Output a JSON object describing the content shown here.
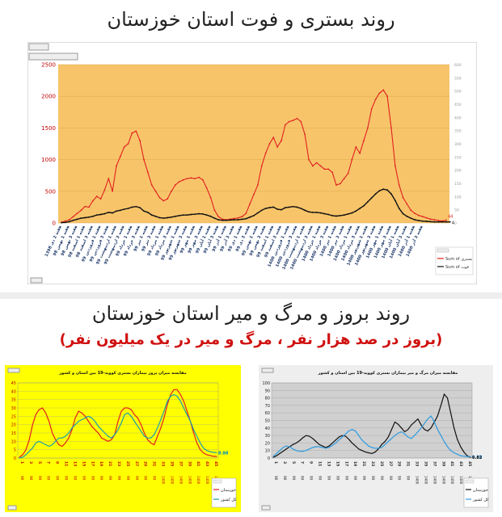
{
  "page": {
    "title1": "روند بستری و فوت استان خوزستان",
    "title2": "روند بروز و مرگ و میر استان خوزستان",
    "subtitle2": "(بروز در صد هزار نفر ، مرگ و میر در یک میلیون نفر)"
  },
  "colors": {
    "orange_bg": "#f7c46a",
    "yellow_bg": "#ffff00",
    "gray_bg": "#d0d0d0",
    "red": "#e02020",
    "black": "#111111",
    "teal": "#1e9ea8",
    "blue": "#2e9be0"
  },
  "chart_data": [
    {
      "type": "line",
      "title": "",
      "ylim_left": [
        0,
        2500
      ],
      "yticks_left": [
        0,
        500,
        1000,
        1500,
        2000,
        2500
      ],
      "ylim_right": [
        0,
        600
      ],
      "yticks_right": [
        0,
        50,
        100,
        150,
        200,
        250,
        300,
        350,
        400,
        450,
        500,
        550,
        600
      ],
      "x_tick_labels": [
        "هفته 2 دی 1398",
        "هفته 1 بهمن 98",
        "هفته 3 بهمن 98",
        "هفته 1 اسفند 98",
        "هفته 3 اسفند 98",
        "هفته 1 فروردین 99",
        "هفته 3 فروردین 99",
        "هفته 1 اردیبهشت 99",
        "هفته 3 اردیبهشت 99",
        "هفته 1 خرداد 99",
        "هفته 3 خرداد 99",
        "هفته 1 تیر 99",
        "هفته 3 تیر 99",
        "هفته 1 مرداد 99",
        "هفته 3 مرداد 99",
        "هفته 1 شهریور 99",
        "هفته 3 شهریور 99",
        "هفته 1 مهر 99",
        "هفته 3 مهر 99",
        "هفته 1 آبان 99",
        "هفته 3 آبان 99",
        "هفته 1 آذر 99",
        "هفته 3 آذر 99",
        "هفته 1 دی 99",
        "هفته 3 دی 99",
        "هفته 1 بهمن 99",
        "هفته 3 بهمن 99",
        "هفته 1 اسفند 99",
        "هفته 3 اسفند 99",
        "هفته 1 فروردین 1400",
        "هفته 3 فروردین 1400",
        "هفته 1 اردیبهشت 1400",
        "هفته 3 اردیبهشت 1400",
        "هفته 1 خرداد 1400",
        "هفته 3 خرداد 1400",
        "هفته 1 تیر 1400",
        "هفته 3 تیر 1400",
        "هفته 1 مرداد 1400",
        "هفته 3 مرداد 1400",
        "هفته 1 شهریور 1400",
        "هفته 3 شهریور 1400",
        "هفته 1 مهر 1400",
        "هفته 3 مهر 1400",
        "هفته 1 آبان 1400",
        "هفته 3 آبان 1400",
        "هفته 1 آذر 1400",
        "هفته 3 آذر 1400"
      ],
      "legend": {
        "placement": "bottom-right",
        "entries": [
          "Sum of بستری",
          "Sum of فوت"
        ]
      },
      "end_labels": [
        "44",
        "4"
      ],
      "series": [
        {
          "name": "Sum of بستری",
          "axis": "left",
          "color": "#e02020",
          "values": [
            10,
            30,
            50,
            100,
            150,
            200,
            260,
            250,
            350,
            420,
            380,
            520,
            700,
            500,
            900,
            1050,
            1200,
            1250,
            1420,
            1450,
            1300,
            1000,
            800,
            600,
            500,
            400,
            350,
            380,
            500,
            600,
            650,
            680,
            700,
            710,
            700,
            720,
            680,
            550,
            400,
            200,
            100,
            60,
            50,
            60,
            70,
            80,
            100,
            150,
            300,
            450,
            600,
            900,
            1100,
            1250,
            1350,
            1200,
            1300,
            1550,
            1600,
            1620,
            1650,
            1600,
            1400,
            1000,
            900,
            950,
            900,
            850,
            850,
            800,
            600,
            620,
            700,
            780,
            1000,
            1200,
            1100,
            1300,
            1500,
            1800,
            1950,
            2050,
            2100,
            2000,
            1500,
            900,
            600,
            400,
            300,
            200,
            150,
            120,
            100,
            80,
            60,
            50,
            40,
            30,
            44
          ]
        },
        {
          "name": "Sum of فوت",
          "axis": "right",
          "color": "#111111",
          "values": [
            1,
            2,
            5,
            10,
            14,
            18,
            20,
            22,
            25,
            30,
            32,
            35,
            40,
            38,
            45,
            48,
            52,
            55,
            60,
            62,
            58,
            45,
            40,
            30,
            25,
            20,
            18,
            20,
            22,
            25,
            28,
            30,
            30,
            32,
            33,
            35,
            34,
            30,
            25,
            18,
            12,
            10,
            10,
            11,
            12,
            12,
            14,
            16,
            22,
            28,
            38,
            48,
            55,
            58,
            60,
            52,
            50,
            58,
            60,
            62,
            60,
            55,
            48,
            42,
            40,
            40,
            38,
            35,
            32,
            28,
            26,
            28,
            30,
            34,
            38,
            45,
            55,
            65,
            80,
            95,
            110,
            122,
            128,
            125,
            110,
            85,
            55,
            35,
            25,
            18,
            12,
            9,
            7,
            6,
            5,
            4,
            4,
            4,
            4,
            4
          ]
        }
      ]
    },
    {
      "type": "line",
      "title": "مقایسه میزان بروز بیماران بستری کووید-19 بین استان و کشور",
      "ylim": [
        0,
        45
      ],
      "yticks": [
        0,
        5,
        10,
        15,
        20,
        25,
        30,
        35,
        40,
        45
      ],
      "x_tick_labels": [
        "1",
        "3",
        "5",
        "7",
        "9",
        "11",
        "13",
        "15",
        "17",
        "19",
        "21",
        "23",
        "25",
        "27",
        "29",
        "31",
        "33",
        "35",
        "37",
        "39",
        "41",
        "43",
        "45"
      ],
      "x_tick_group_labels": [
        "98",
        "98",
        "99",
        "99",
        "99",
        "99",
        "99",
        "99",
        "99",
        "99",
        "99",
        "99",
        "99",
        "99",
        "99",
        "99",
        "1400",
        "1400",
        "1400",
        "1400",
        "1400",
        "1400",
        "1400"
      ],
      "legend": {
        "placement": "bottom-right",
        "entries": [
          "خوزستان",
          "کل کشور"
        ]
      },
      "end_labels": [
        "3.26",
        "0.90"
      ],
      "series": [
        {
          "name": "خوزستان",
          "color": "#e02020",
          "values": [
            0.5,
            2,
            5,
            11,
            20,
            26,
            29,
            30,
            27,
            22,
            15,
            11,
            8,
            7,
            9,
            12,
            17,
            24,
            28,
            27,
            25,
            22,
            19,
            17,
            15,
            12,
            11,
            10,
            11,
            14,
            22,
            28,
            30,
            30,
            29,
            26,
            24,
            20,
            15,
            11,
            9,
            8,
            13,
            18,
            24,
            32,
            38,
            41,
            41,
            38,
            34,
            28,
            22,
            15,
            9,
            5,
            3,
            2,
            1.5,
            1,
            0.9
          ]
        },
        {
          "name": "کل کشور",
          "color": "#1e9ea8",
          "values": [
            0,
            0.5,
            2,
            4,
            6,
            9,
            10,
            9,
            8,
            7,
            8,
            10,
            12,
            12,
            13,
            15,
            18,
            20,
            22,
            23,
            24,
            25,
            24,
            22,
            19,
            17,
            15,
            13,
            12,
            14,
            17,
            21,
            26,
            27,
            25,
            22,
            19,
            16,
            13,
            12,
            12,
            14,
            18,
            23,
            28,
            34,
            37,
            38,
            37,
            34,
            30,
            26,
            22,
            17,
            13,
            9,
            6,
            4.5,
            3.8,
            3.4,
            3.26
          ]
        }
      ]
    },
    {
      "type": "line",
      "title": "مقایسه میزان مرگ و میر بیماران بستری کووید-19 بین استان و کشور",
      "ylim": [
        0,
        100
      ],
      "yticks": [
        0,
        10,
        20,
        30,
        40,
        50,
        60,
        70,
        80,
        90,
        100
      ],
      "x_tick_labels": [
        "1",
        "3",
        "5",
        "7",
        "9",
        "11",
        "13",
        "15",
        "17",
        "19",
        "21",
        "23",
        "25",
        "27",
        "29",
        "31",
        "33",
        "35",
        "37",
        "39",
        "41",
        "43",
        "45"
      ],
      "x_tick_group_labels": [
        "98",
        "98",
        "99",
        "99",
        "99",
        "99",
        "99",
        "99",
        "99",
        "99",
        "99",
        "99",
        "99",
        "99",
        "99",
        "99",
        "1400",
        "1400",
        "1400",
        "1400",
        "1400",
        "1400",
        "1400"
      ],
      "legend": {
        "placement": "bottom-right",
        "entries": [
          "خوزستان",
          "کل کشور"
        ]
      },
      "end_labels": [
        "1.88",
        "0.82"
      ],
      "series": [
        {
          "name": "خوزستان",
          "color": "#111111",
          "values": [
            1,
            3,
            6,
            9,
            12,
            15,
            18,
            20,
            23,
            27,
            30,
            29,
            26,
            22,
            18,
            16,
            14,
            16,
            20,
            24,
            28,
            30,
            29,
            25,
            20,
            16,
            12,
            10,
            8,
            7,
            6,
            8,
            12,
            18,
            22,
            28,
            38,
            48,
            45,
            40,
            35,
            38,
            44,
            48,
            52,
            44,
            38,
            36,
            40,
            48,
            56,
            70,
            85,
            80,
            60,
            40,
            25,
            15,
            8,
            3,
            0.82
          ]
        },
        {
          "name": "کل کشور",
          "color": "#2e9be0",
          "values": [
            2,
            6,
            10,
            14,
            16,
            15,
            12,
            10,
            9,
            9,
            10,
            12,
            14,
            15,
            15,
            14,
            13,
            14,
            17,
            20,
            24,
            28,
            32,
            36,
            38,
            36,
            30,
            24,
            20,
            16,
            14,
            13,
            13,
            14,
            18,
            22,
            26,
            30,
            33,
            35,
            32,
            28,
            26,
            30,
            35,
            40,
            46,
            52,
            56,
            48,
            38,
            30,
            22,
            15,
            10,
            7,
            5,
            3,
            2.5,
            2,
            1.88
          ]
        }
      ]
    }
  ]
}
